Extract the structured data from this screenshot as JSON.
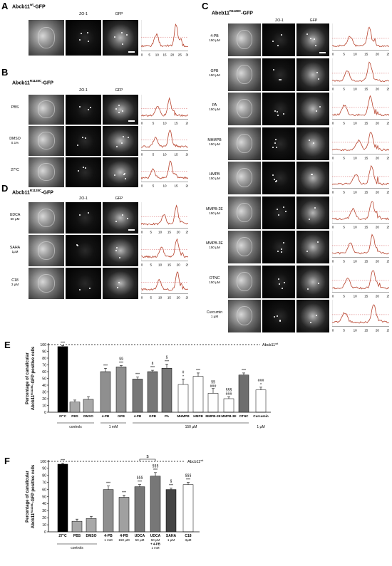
{
  "panelA": {
    "label": "A",
    "title_main": "Abcb11",
    "title_sup": "wt",
    "title_tail": "-GFP",
    "col_zo1": "ZO-1",
    "col_gfp": "GFP"
  },
  "panelB": {
    "label": "B",
    "title_main": "Abcb11",
    "title_sup": "R1128C",
    "title_tail": "-GFP",
    "col_zo1": "ZO-1",
    "col_gfp": "GFP",
    "rows": [
      {
        "l1": "PBS",
        "l2": ""
      },
      {
        "l1": "DMSO",
        "l2": "0.1%"
      },
      {
        "l1": "27°C",
        "l2": ""
      }
    ]
  },
  "panelC": {
    "label": "C",
    "title_main": "Abcb11",
    "title_sup": "R1128C",
    "title_tail": "-GFP",
    "col_zo1": "ZO-1",
    "col_gfp": "GFP",
    "rows": [
      {
        "l1": "4-PB",
        "l2": "150 µM"
      },
      {
        "l1": "GPB",
        "l2": "150 µM"
      },
      {
        "l1": "PA",
        "l2": "150 µM"
      },
      {
        "l1": "MHMPB",
        "l2": "150 µM"
      },
      {
        "l1": "HMPB",
        "l2": "150 µM"
      },
      {
        "l1": "MMPB-2E",
        "l2": "150 µM"
      },
      {
        "l1": "MMPB-3E",
        "l2": "150 µM"
      },
      {
        "l1": "OTNC",
        "l2": "150 µM"
      },
      {
        "l1": "Curcumin",
        "l2": "1 µM"
      }
    ]
  },
  "panelD": {
    "label": "D",
    "title_main": "Abcb11",
    "title_sup": "R1128C",
    "title_tail": "-GFP",
    "col_zo1": "ZO-1",
    "col_gfp": "GFP",
    "rows": [
      {
        "l1": "UDCA",
        "l2": "50 µM"
      },
      {
        "l1": "SAHA",
        "l2": "1µM"
      },
      {
        "l1": "C18",
        "l2": "3 µM"
      }
    ]
  },
  "profile_ticks_30": [
    "0",
    "5",
    "10",
    "15",
    "20",
    "25",
    "30"
  ],
  "profile_ticks_20": [
    "0",
    "5",
    "10",
    "15",
    "20"
  ],
  "profile_ticks_25": [
    "0",
    "5",
    "10",
    "15",
    "20",
    "25"
  ],
  "colors": {
    "profile_line": "#b8442e",
    "dash": "#cc3333"
  },
  "chart_data": [
    {
      "type": "bar",
      "panel": "E",
      "ylabel_1": "Percentage of canalicular",
      "ylabel_2_main": "Abcb11",
      "ylabel_2_sup": "R1128C",
      "ylabel_2_tail": "-GFP positive cells",
      "ylim": [
        0,
        100
      ],
      "yticks": [
        "0",
        "10",
        "20",
        "30",
        "40",
        "50",
        "60",
        "70",
        "80",
        "90",
        "100"
      ],
      "reference_label": "Abcb11",
      "reference_sup": "wt",
      "reference_value": 100,
      "categories": [
        "27°C",
        "PBS",
        "DMSO",
        "4-PB",
        "GPB",
        "4-PB",
        "GPB",
        "PA",
        "MHMPB",
        "HMPB",
        "MMPB-2E",
        "MMPB-3E",
        "OTNC",
        "Curcumin"
      ],
      "values": [
        97,
        15,
        19,
        60,
        67,
        49,
        60,
        65,
        41,
        53,
        28,
        20,
        55,
        33
      ],
      "errors": [
        1.5,
        3,
        4,
        5,
        2,
        3,
        2,
        6,
        8,
        5,
        7,
        3,
        3,
        4
      ],
      "sig_above": [
        "***",
        "",
        "",
        "***",
        "***",
        "***",
        "***",
        "***",
        "*",
        "***",
        "###",
        "###",
        "***",
        "*"
      ],
      "sig_mid": [
        "",
        "",
        "",
        "",
        "§§",
        "",
        "§",
        "§",
        "#",
        "",
        "§§",
        "§§§",
        "",
        "###"
      ],
      "groups": [
        {
          "label": "controls"
        },
        {
          "label": "1 mM"
        },
        {
          "label": "150 µM"
        },
        {
          "label": "1 µM"
        }
      ]
    },
    {
      "type": "bar",
      "panel": "F",
      "ylabel_1": "Percentage of canalicular",
      "ylabel_2_main": "Abcb11",
      "ylabel_2_sup": "R1128C",
      "ylabel_2_tail": "-GFP positive cells",
      "ylim": [
        0,
        100
      ],
      "yticks": [
        "0",
        "10",
        "20",
        "30",
        "40",
        "50",
        "60",
        "70",
        "80",
        "90",
        "100"
      ],
      "reference_label": "Abcb11",
      "reference_sup": "wt",
      "reference_value": 100,
      "categories": [
        "27°C",
        "PBS",
        "DMSO",
        "4-PB",
        "4-PB",
        "UDCA",
        "UDCA",
        "SAHA",
        "C18"
      ],
      "sublabels": [
        "",
        "",
        "",
        "1 mM",
        "150 µM",
        "50 µM",
        "50 µM + 4-PB 1 mM",
        "1 µM",
        "3µM"
      ],
      "values": [
        96,
        15,
        19,
        60,
        49,
        64,
        79,
        60,
        67
      ],
      "errors": [
        1.5,
        3,
        3,
        5,
        3,
        3,
        5,
        2,
        3
      ],
      "sig_top": [
        "***",
        "",
        "",
        "***",
        "***",
        "***",
        "***",
        "***",
        "***"
      ],
      "sig_mid": [
        "",
        "",
        "",
        "",
        "",
        "§§§",
        "§§§",
        "§",
        "§§§"
      ],
      "bracket_label": "$",
      "group_label": "controls"
    }
  ]
}
